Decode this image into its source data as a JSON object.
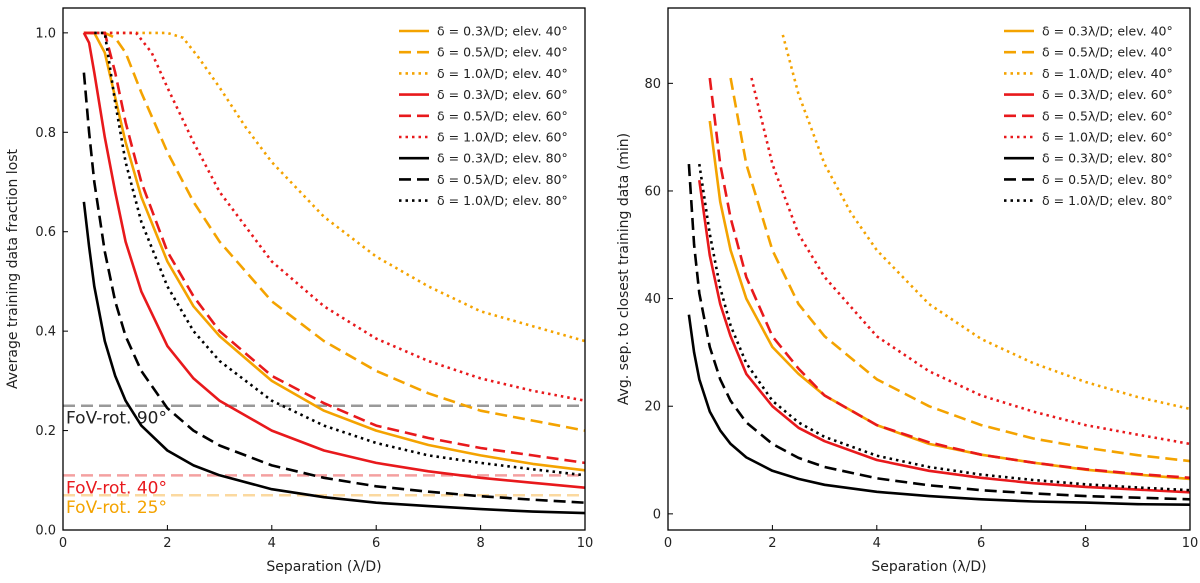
{
  "colors": {
    "elev40": "#f4a300",
    "elev60": "#e8191c",
    "elev80": "#000000"
  },
  "chart_data": [
    {
      "type": "line",
      "xlabel": "Separation (λ/D)",
      "ylabel": "Average training data fraction lost",
      "xlim": [
        0,
        10
      ],
      "ylim": [
        0,
        1.05
      ],
      "xticks": [
        "0",
        "2",
        "4",
        "6",
        "8",
        "10"
      ],
      "yticks": [
        "0.0",
        "0.2",
        "0.4",
        "0.6",
        "0.8",
        "1.0"
      ],
      "legend_position": "top-right",
      "series": [
        {
          "name": "δ = 0.3λ/D; elev. 40°",
          "color": "elev40",
          "dash": "solid",
          "x": [
            0.4,
            0.6,
            0.8,
            1.0,
            1.2,
            1.5,
            2,
            2.5,
            3,
            4,
            5,
            6,
            7,
            8,
            9,
            10
          ],
          "y": [
            1.0,
            1.0,
            0.96,
            0.87,
            0.78,
            0.67,
            0.54,
            0.45,
            0.39,
            0.3,
            0.24,
            0.2,
            0.171,
            0.15,
            0.133,
            0.12
          ]
        },
        {
          "name": "δ = 0.5λ/D; elev. 40°",
          "color": "elev40",
          "dash": "dash",
          "x": [
            0.4,
            0.8,
            1.0,
            1.2,
            1.5,
            2,
            2.5,
            3,
            4,
            5,
            6,
            7,
            8,
            9,
            10
          ],
          "y": [
            1.0,
            1.0,
            0.99,
            0.96,
            0.88,
            0.76,
            0.66,
            0.58,
            0.46,
            0.38,
            0.32,
            0.275,
            0.24,
            0.22,
            0.2
          ]
        },
        {
          "name": "δ = 1.0λ/D; elev. 40°",
          "color": "elev40",
          "dash": "dot",
          "x": [
            0.4,
            1,
            2,
            2.3,
            2.6,
            3,
            3.5,
            4,
            5,
            6,
            7,
            8,
            9,
            10
          ],
          "y": [
            1.0,
            1.0,
            1.0,
            0.99,
            0.95,
            0.89,
            0.81,
            0.74,
            0.63,
            0.55,
            0.49,
            0.44,
            0.41,
            0.38
          ]
        },
        {
          "name": "δ = 0.3λ/D; elev. 60°",
          "color": "elev60",
          "dash": "solid",
          "x": [
            0.4,
            0.5,
            0.6,
            0.8,
            1.0,
            1.2,
            1.5,
            2,
            2.5,
            3,
            4,
            5,
            6,
            7,
            8,
            9,
            10
          ],
          "y": [
            1.0,
            0.98,
            0.92,
            0.79,
            0.68,
            0.58,
            0.48,
            0.37,
            0.305,
            0.26,
            0.2,
            0.16,
            0.135,
            0.118,
            0.105,
            0.095,
            0.085
          ]
        },
        {
          "name": "δ = 0.5λ/D; elev. 60°",
          "color": "elev60",
          "dash": "dash",
          "x": [
            0.4,
            0.8,
            1.0,
            1.2,
            1.5,
            2,
            2.5,
            3,
            4,
            5,
            6,
            7,
            8,
            9,
            10
          ],
          "y": [
            1.0,
            1.0,
            0.92,
            0.82,
            0.7,
            0.56,
            0.47,
            0.4,
            0.31,
            0.255,
            0.21,
            0.185,
            0.165,
            0.15,
            0.135
          ]
        },
        {
          "name": "δ = 1.0λ/D; elev. 60°",
          "color": "elev60",
          "dash": "dot",
          "x": [
            0.4,
            1,
            1.4,
            1.7,
            2,
            2.5,
            3,
            4,
            5,
            6,
            7,
            8,
            9,
            10
          ],
          "y": [
            1.0,
            1.0,
            1.0,
            0.96,
            0.89,
            0.78,
            0.68,
            0.54,
            0.45,
            0.385,
            0.34,
            0.305,
            0.28,
            0.26
          ]
        },
        {
          "name": "δ = 0.3λ/D; elev. 80°",
          "color": "elev80",
          "dash": "solid",
          "x": [
            0.4,
            0.5,
            0.6,
            0.8,
            1.0,
            1.2,
            1.5,
            2,
            2.5,
            3,
            4,
            5,
            6,
            7,
            8,
            9,
            10
          ],
          "y": [
            0.66,
            0.57,
            0.49,
            0.38,
            0.31,
            0.26,
            0.21,
            0.16,
            0.13,
            0.11,
            0.082,
            0.066,
            0.055,
            0.048,
            0.042,
            0.037,
            0.034
          ]
        },
        {
          "name": "δ = 0.5λ/D; elev. 80°",
          "color": "elev80",
          "dash": "dash",
          "x": [
            0.4,
            0.5,
            0.6,
            0.8,
            1.0,
            1.2,
            1.5,
            2,
            2.5,
            3,
            4,
            5,
            6,
            7,
            8,
            9,
            10
          ],
          "y": [
            0.92,
            0.8,
            0.7,
            0.56,
            0.46,
            0.39,
            0.32,
            0.245,
            0.2,
            0.17,
            0.13,
            0.105,
            0.088,
            0.077,
            0.068,
            0.061,
            0.055
          ]
        },
        {
          "name": "δ = 1.0λ/D; elev. 80°",
          "color": "elev80",
          "dash": "dot",
          "x": [
            0.6,
            0.8,
            1.0,
            1.2,
            1.5,
            2,
            2.5,
            3,
            4,
            5,
            6,
            7,
            8,
            9,
            10
          ],
          "y": [
            1.0,
            1.0,
            0.86,
            0.74,
            0.62,
            0.49,
            0.4,
            0.34,
            0.26,
            0.21,
            0.175,
            0.15,
            0.135,
            0.122,
            0.11
          ]
        }
      ],
      "reference_lines": [
        {
          "label": "FoV-rot. 90°",
          "y": 0.25,
          "color": "#999999",
          "text_color": "#222222"
        },
        {
          "label": "FoV-rot. 40°",
          "y": 0.11,
          "color": "#f4a0a0",
          "text_color": "#e8191c"
        },
        {
          "label": "FoV-rot. 25°",
          "y": 0.07,
          "color": "#fbd9a0",
          "text_color": "#f4a300"
        }
      ]
    },
    {
      "type": "line",
      "xlabel": "Separation (λ/D)",
      "ylabel": "Avg. sep. to closest training data (min)",
      "xlim": [
        0,
        10
      ],
      "ylim": [
        -3,
        94
      ],
      "xticks": [
        "0",
        "2",
        "4",
        "6",
        "8",
        "10"
      ],
      "yticks": [
        "0",
        "20",
        "40",
        "60",
        "80"
      ],
      "legend_position": "top-right",
      "series": [
        {
          "name": "δ = 0.3λ/D; elev. 40°",
          "color": "elev40",
          "dash": "solid",
          "x": [
            0.8,
            1.0,
            1.2,
            1.5,
            2,
            2.5,
            3,
            4,
            5,
            6,
            7,
            8,
            9,
            10
          ],
          "y": [
            73,
            58,
            49,
            40,
            31,
            26,
            22,
            16.5,
            13,
            11,
            9.5,
            8.2,
            7.3,
            6.5
          ]
        },
        {
          "name": "δ = 0.5λ/D; elev. 40°",
          "color": "elev40",
          "dash": "dash",
          "x": [
            1.2,
            1.5,
            2,
            2.5,
            3,
            4,
            5,
            6,
            7,
            8,
            9,
            10
          ],
          "y": [
            81,
            65,
            49,
            39,
            33,
            25,
            20,
            16.5,
            14,
            12.3,
            10.9,
            9.8
          ]
        },
        {
          "name": "δ = 1.0λ/D; elev. 40°",
          "color": "elev40",
          "dash": "dot",
          "x": [
            2.2,
            2.5,
            3,
            3.5,
            4,
            5,
            6,
            7,
            8,
            9,
            10
          ],
          "y": [
            89,
            78,
            65,
            56,
            49,
            39,
            32.5,
            28,
            24.5,
            21.7,
            19.5
          ]
        },
        {
          "name": "δ = 0.3λ/D; elev. 60°",
          "color": "elev60",
          "dash": "solid",
          "x": [
            0.6,
            0.8,
            1.0,
            1.2,
            1.5,
            2,
            2.5,
            3,
            4,
            5,
            6,
            7,
            8,
            9,
            10
          ],
          "y": [
            62,
            48,
            39,
            33,
            26,
            20,
            16,
            13.5,
            10,
            8,
            6.7,
            5.7,
            5,
            4.5,
            4
          ]
        },
        {
          "name": "δ = 0.5λ/D; elev. 60°",
          "color": "elev60",
          "dash": "dash",
          "x": [
            0.8,
            1.0,
            1.2,
            1.5,
            2,
            2.5,
            3,
            4,
            5,
            6,
            7,
            8,
            9,
            10
          ],
          "y": [
            81,
            65,
            55,
            44,
            33,
            27,
            22,
            16.5,
            13.3,
            11,
            9.5,
            8.3,
            7.4,
            6.7
          ]
        },
        {
          "name": "δ = 1.0λ/D; elev. 60°",
          "color": "elev60",
          "dash": "dot",
          "x": [
            1.6,
            2,
            2.5,
            3,
            4,
            5,
            6,
            7,
            8,
            9,
            10
          ],
          "y": [
            81,
            65,
            52,
            44,
            33,
            26.5,
            22,
            19,
            16.5,
            14.7,
            13
          ]
        },
        {
          "name": "δ = 0.3λ/D; elev. 80°",
          "color": "elev80",
          "dash": "solid",
          "x": [
            0.4,
            0.5,
            0.6,
            0.8,
            1.0,
            1.2,
            1.5,
            2,
            2.5,
            3,
            4,
            5,
            6,
            7,
            8,
            9,
            10
          ],
          "y": [
            37,
            30,
            25,
            19,
            15.5,
            13,
            10.5,
            8,
            6.5,
            5.4,
            4.1,
            3.3,
            2.7,
            2.3,
            2.1,
            1.8,
            1.7
          ]
        },
        {
          "name": "δ = 0.5λ/D; elev. 80°",
          "color": "elev80",
          "dash": "dash",
          "x": [
            0.4,
            0.5,
            0.6,
            0.8,
            1.0,
            1.2,
            1.5,
            2,
            2.5,
            3,
            4,
            5,
            6,
            7,
            8,
            9,
            10
          ],
          "y": [
            65,
            50,
            41,
            31,
            25,
            21,
            17,
            13,
            10.4,
            8.7,
            6.6,
            5.3,
            4.4,
            3.8,
            3.3,
            3,
            2.7
          ]
        },
        {
          "name": "δ = 1.0λ/D; elev. 80°",
          "color": "elev80",
          "dash": "dot",
          "x": [
            0.6,
            0.8,
            1.0,
            1.2,
            1.5,
            2,
            2.5,
            3,
            4,
            5,
            6,
            7,
            8,
            9,
            10
          ],
          "y": [
            65,
            52,
            42,
            35,
            28,
            21,
            17,
            14.3,
            10.8,
            8.7,
            7.3,
            6.3,
            5.5,
            4.9,
            4.4
          ]
        }
      ]
    }
  ]
}
